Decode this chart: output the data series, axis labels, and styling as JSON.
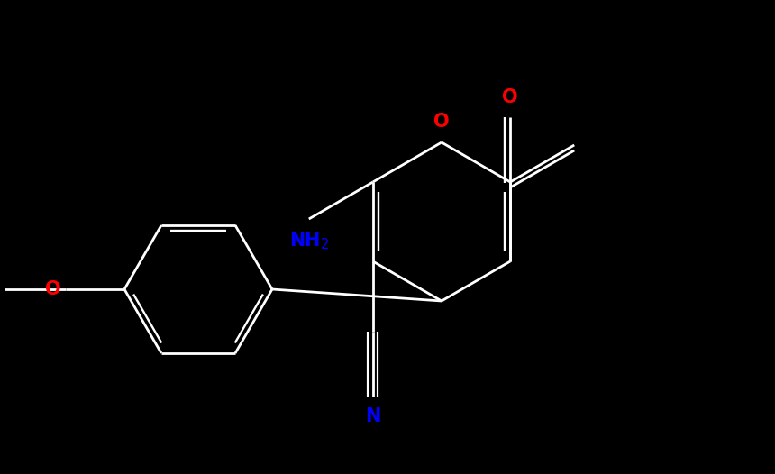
{
  "background_color": "#000000",
  "bond_color": "#ffffff",
  "atom_colors": {
    "O": "#ff0000",
    "N": "#0000ff",
    "C": "#ffffff"
  },
  "figsize": [
    8.6,
    5.26
  ],
  "dpi": 100,
  "lw": 2.0,
  "font_size": 15
}
